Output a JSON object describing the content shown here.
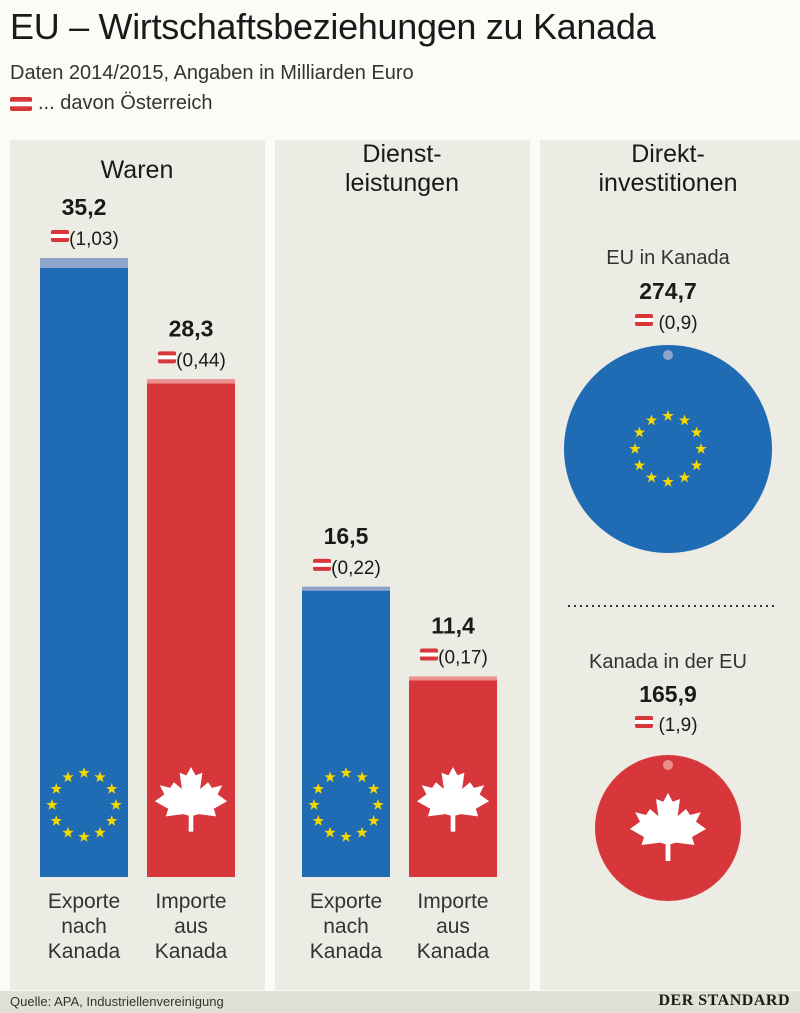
{
  "title": "EU – Wirtschaftsbeziehungen zu Kanada",
  "subtitle": "Daten 2014/2015, Angaben in Milliarden Euro",
  "legend_text": "... davon Österreich",
  "colors": {
    "eu_blue": "#1f6bb4",
    "canada_red": "#d7363b",
    "eu_light": "#8ea4c8",
    "ca_light": "#e9908e",
    "star": "#f5d800",
    "panel": "#ecece4"
  },
  "chart_data": {
    "type": "bar",
    "title": "EU – Wirtschaftsbeziehungen zu Kanada",
    "unit": "Milliarden Euro",
    "groups": [
      {
        "name": "Waren",
        "categories": [
          "Exporte nach Kanada",
          "Importe aus Kanada"
        ],
        "labels": [
          "Exporte\nnach\nKanada",
          "Importe\naus\nKanada"
        ],
        "values": [
          35.2,
          28.3
        ],
        "value_labels": [
          "35,2",
          "28,3"
        ],
        "austria": [
          1.03,
          0.44
        ],
        "austria_labels": [
          "1,03",
          "0,44"
        ]
      },
      {
        "name": "Dienst-\nleistungen",
        "categories": [
          "Exporte nach Kanada",
          "Importe aus Kanada"
        ],
        "labels": [
          "Exporte\nnach\nKanada",
          "Importe\naus\nKanada"
        ],
        "values": [
          16.5,
          11.4
        ],
        "value_labels": [
          "16,5",
          "11,4"
        ],
        "austria": [
          0.22,
          0.17
        ],
        "austria_labels": [
          "0,22",
          "0,17"
        ]
      }
    ],
    "investment": {
      "name": "Direkt-\ninvestitionen",
      "items": [
        {
          "label": "EU in Kanada",
          "value": 274.7,
          "value_label": "274,7",
          "austria": 0.9,
          "austria_label": "0,9"
        },
        {
          "label": "Kanada in der EU",
          "value": 165.9,
          "value_label": "165,9",
          "austria": 1.9,
          "austria_label": "1,9"
        }
      ]
    }
  },
  "footer": {
    "source": "Quelle: APA, Industriellenvereinigung",
    "brand": "DER STANDARD"
  }
}
